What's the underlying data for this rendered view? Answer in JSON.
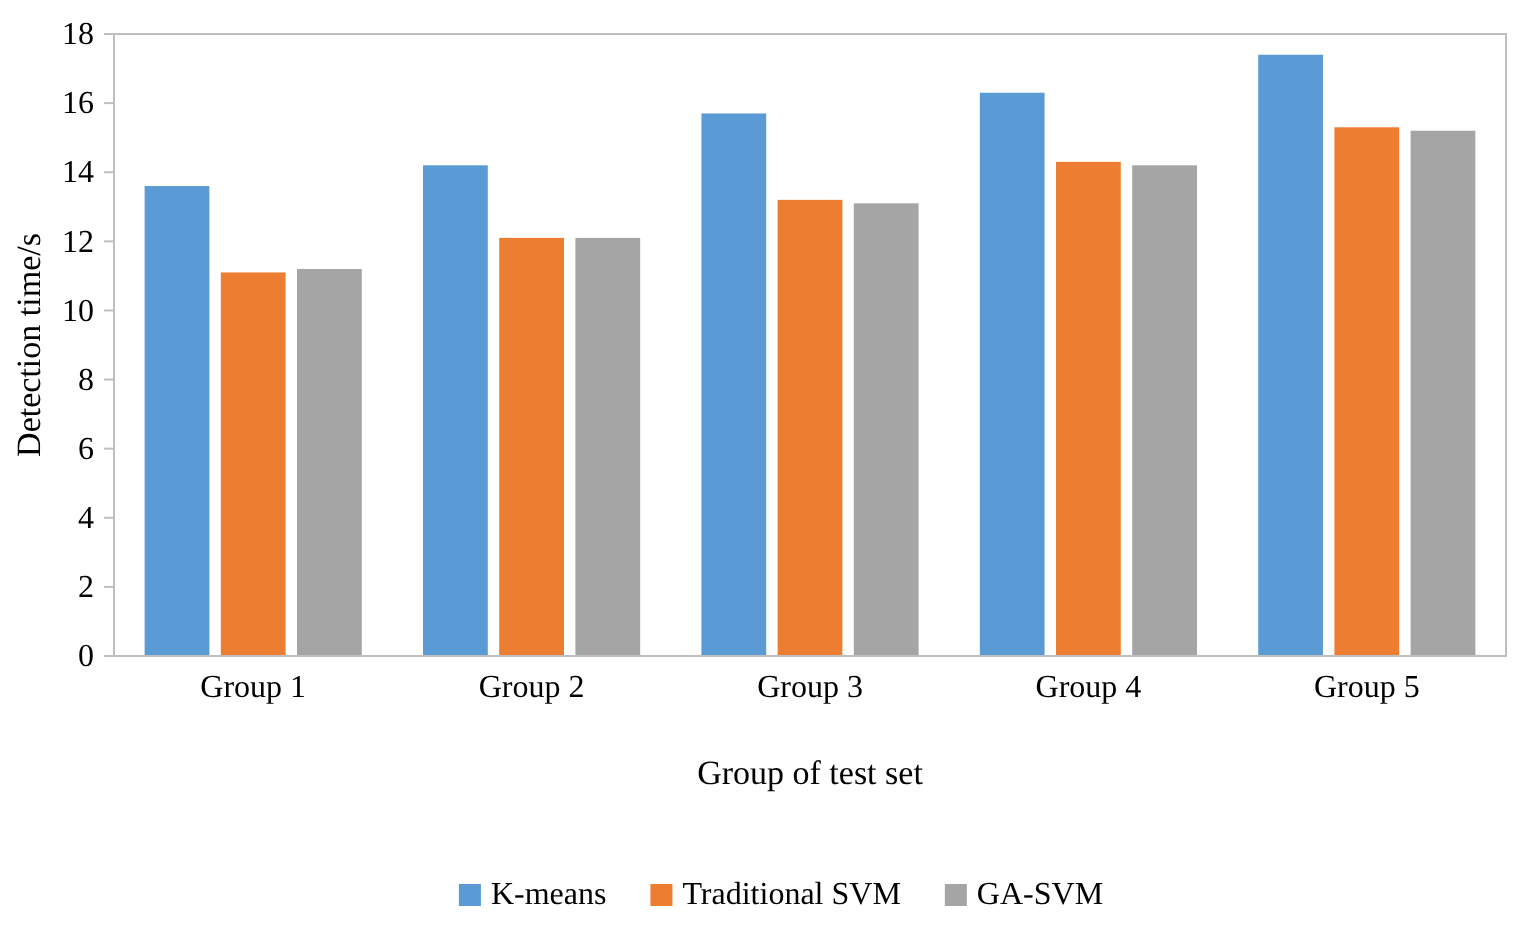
{
  "chart_data": {
    "type": "bar",
    "xlabel": "Group of test set",
    "ylabel": "Detection time/s",
    "categories": [
      "Group 1",
      "Group 2",
      "Group 3",
      "Group 4",
      "Group 5"
    ],
    "series": [
      {
        "name": "K-means",
        "color": "#5b9bd5",
        "values": [
          13.6,
          14.2,
          15.7,
          16.3,
          17.4
        ]
      },
      {
        "name": "Traditional SVM",
        "color": "#ed7d31",
        "values": [
          11.1,
          12.1,
          13.2,
          14.3,
          15.3
        ]
      },
      {
        "name": "GA-SVM",
        "color": "#a5a5a5",
        "values": [
          11.2,
          12.1,
          13.1,
          14.2,
          15.2
        ]
      }
    ],
    "ylim": [
      0,
      18
    ],
    "yticks": [
      0,
      2,
      4,
      6,
      8,
      10,
      12,
      14,
      16,
      18
    ],
    "grid": false,
    "legend": "bottom"
  }
}
